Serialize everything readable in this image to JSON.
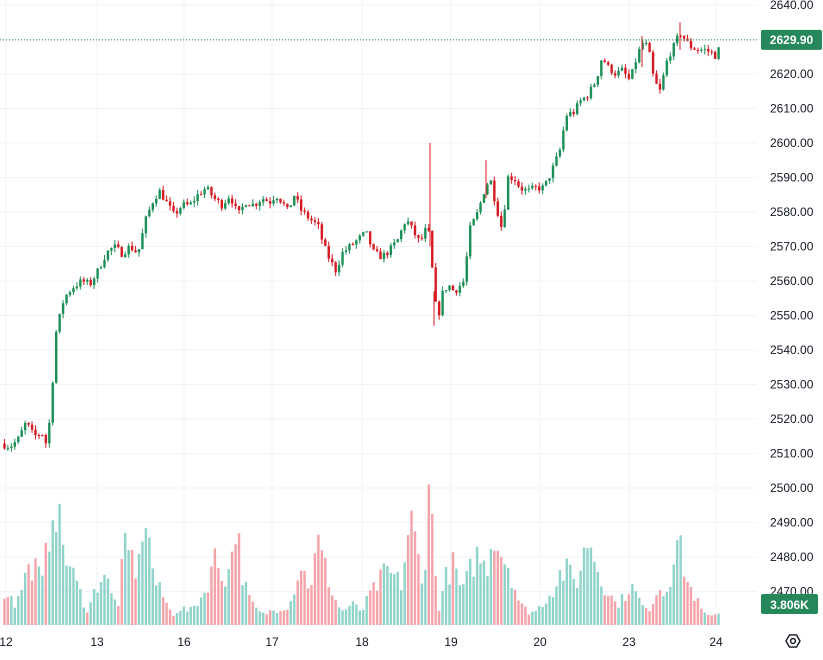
{
  "chart_data": {
    "type": "candlestick",
    "price_axis": {
      "ticks": [
        "2640.00",
        "2630.00",
        "2620.00",
        "2610.00",
        "2600.00",
        "2590.00",
        "2580.00",
        "2570.00",
        "2560.00",
        "2550.00",
        "2540.00",
        "2530.00",
        "2520.00",
        "2510.00",
        "2500.00",
        "2490.00",
        "2480.00",
        "2470.00"
      ],
      "tick_values": [
        2640,
        2630,
        2620,
        2610,
        2600,
        2590,
        2580,
        2570,
        2560,
        2550,
        2540,
        2530,
        2520,
        2510,
        2500,
        2490,
        2480,
        2470
      ]
    },
    "time_axis": {
      "labels": [
        "12",
        "13",
        "16",
        "17",
        "18",
        "19",
        "20",
        "23",
        "24"
      ]
    },
    "last_price": {
      "label": "2629.90",
      "value": 2629.9,
      "color": "#26875a"
    },
    "volume_badge": {
      "label": "3.806K",
      "color": "#26875a"
    },
    "colors": {
      "up": "#26a69a",
      "down": "#ef5350",
      "candle_up": "#1b8f55",
      "candle_down": "#d71921",
      "vol_up": "#8fd3ca",
      "vol_down": "#f5a3a8",
      "grid": "#f0f3fa",
      "text": "#131722",
      "last_line": "#26875a"
    },
    "settings_icon": "gear-icon",
    "keyframes": [
      [
        0,
        2513
      ],
      [
        10,
        2512
      ],
      [
        18,
        2514
      ],
      [
        26,
        2519
      ],
      [
        34,
        2515
      ],
      [
        42,
        2516
      ],
      [
        46,
        2513
      ],
      [
        50,
        2520
      ],
      [
        56,
        2545
      ],
      [
        64,
        2555
      ],
      [
        72,
        2558
      ],
      [
        82,
        2560
      ],
      [
        90,
        2559
      ],
      [
        98,
        2563
      ],
      [
        106,
        2568
      ],
      [
        114,
        2570
      ],
      [
        122,
        2568
      ],
      [
        130,
        2570
      ],
      [
        138,
        2568
      ],
      [
        146,
        2578
      ],
      [
        154,
        2584
      ],
      [
        160,
        2586
      ],
      [
        166,
        2583
      ],
      [
        174,
        2579
      ],
      [
        182,
        2582
      ],
      [
        190,
        2582
      ],
      [
        198,
        2585
      ],
      [
        206,
        2587
      ],
      [
        214,
        2584
      ],
      [
        222,
        2582
      ],
      [
        230,
        2585
      ],
      [
        238,
        2579
      ],
      [
        246,
        2583
      ],
      [
        254,
        2582
      ],
      [
        262,
        2584
      ],
      [
        270,
        2583
      ],
      [
        276,
        2585
      ],
      [
        282,
        2583
      ],
      [
        288,
        2580
      ],
      [
        294,
        2585
      ],
      [
        302,
        2580
      ],
      [
        310,
        2578
      ],
      [
        318,
        2576
      ],
      [
        324,
        2570
      ],
      [
        330,
        2566
      ],
      [
        336,
        2563
      ],
      [
        342,
        2568
      ],
      [
        350,
        2570
      ],
      [
        358,
        2572
      ],
      [
        366,
        2574
      ],
      [
        374,
        2568
      ],
      [
        382,
        2567
      ],
      [
        390,
        2569
      ],
      [
        398,
        2572
      ],
      [
        406,
        2578
      ],
      [
        414,
        2574
      ],
      [
        420,
        2571
      ],
      [
        426,
        2575
      ],
      [
        430,
        2573
      ],
      [
        434,
        2556
      ],
      [
        438,
        2549
      ],
      [
        442,
        2556
      ],
      [
        448,
        2559
      ],
      [
        454,
        2557
      ],
      [
        458,
        2558
      ],
      [
        464,
        2560
      ],
      [
        470,
        2575
      ],
      [
        478,
        2580
      ],
      [
        484,
        2586
      ],
      [
        490,
        2590
      ],
      [
        496,
        2582
      ],
      [
        502,
        2575
      ],
      [
        508,
        2590
      ],
      [
        514,
        2590
      ],
      [
        520,
        2587
      ],
      [
        528,
        2586
      ],
      [
        536,
        2587
      ],
      [
        544,
        2587
      ],
      [
        552,
        2592
      ],
      [
        560,
        2598
      ],
      [
        566,
        2608
      ],
      [
        574,
        2609
      ],
      [
        580,
        2612
      ],
      [
        588,
        2614
      ],
      [
        596,
        2618
      ],
      [
        602,
        2625
      ],
      [
        608,
        2622
      ],
      [
        616,
        2620
      ],
      [
        622,
        2621
      ],
      [
        630,
        2618
      ],
      [
        636,
        2624
      ],
      [
        642,
        2629
      ],
      [
        648,
        2628
      ],
      [
        654,
        2618
      ],
      [
        660,
        2615
      ],
      [
        668,
        2625
      ],
      [
        674,
        2628
      ],
      [
        680,
        2632
      ],
      [
        690,
        2628
      ],
      [
        698,
        2627
      ],
      [
        706,
        2627
      ],
      [
        712,
        2626
      ],
      [
        717,
        2625
      ],
      [
        721,
        2629.9
      ]
    ],
    "volume_keyframes": [
      [
        0,
        4
      ],
      [
        10,
        11
      ],
      [
        16,
        5
      ],
      [
        24,
        14
      ],
      [
        34,
        18
      ],
      [
        42,
        12
      ],
      [
        48,
        24
      ],
      [
        54,
        40
      ],
      [
        60,
        28
      ],
      [
        66,
        20
      ],
      [
        74,
        14
      ],
      [
        82,
        8
      ],
      [
        88,
        4
      ],
      [
        96,
        11
      ],
      [
        104,
        16
      ],
      [
        112,
        8
      ],
      [
        118,
        6
      ],
      [
        124,
        22
      ],
      [
        132,
        20
      ],
      [
        138,
        14
      ],
      [
        144,
        35
      ],
      [
        150,
        22
      ],
      [
        156,
        12
      ],
      [
        164,
        8
      ],
      [
        172,
        3
      ],
      [
        180,
        5
      ],
      [
        190,
        4
      ],
      [
        198,
        7
      ],
      [
        206,
        10
      ],
      [
        214,
        20
      ],
      [
        222,
        15
      ],
      [
        228,
        14
      ],
      [
        236,
        30
      ],
      [
        244,
        12
      ],
      [
        252,
        6
      ],
      [
        262,
        3
      ],
      [
        270,
        4
      ],
      [
        280,
        5
      ],
      [
        290,
        6
      ],
      [
        300,
        18
      ],
      [
        310,
        11
      ],
      [
        318,
        24
      ],
      [
        326,
        16
      ],
      [
        334,
        8
      ],
      [
        342,
        4
      ],
      [
        352,
        6
      ],
      [
        362,
        4
      ],
      [
        370,
        9
      ],
      [
        378,
        12
      ],
      [
        386,
        16
      ],
      [
        394,
        14
      ],
      [
        402,
        12
      ],
      [
        410,
        32
      ],
      [
        418,
        20
      ],
      [
        424,
        7
      ],
      [
        428,
        50
      ],
      [
        432,
        30
      ],
      [
        438,
        4
      ],
      [
        446,
        14
      ],
      [
        454,
        18
      ],
      [
        462,
        9
      ],
      [
        470,
        16
      ],
      [
        478,
        21
      ],
      [
        486,
        16
      ],
      [
        494,
        28
      ],
      [
        500,
        22
      ],
      [
        508,
        18
      ],
      [
        514,
        12
      ],
      [
        520,
        6
      ],
      [
        528,
        4
      ],
      [
        536,
        4
      ],
      [
        544,
        7
      ],
      [
        552,
        10
      ],
      [
        560,
        15
      ],
      [
        568,
        16
      ],
      [
        576,
        12
      ],
      [
        582,
        18
      ],
      [
        588,
        26
      ],
      [
        594,
        21
      ],
      [
        600,
        14
      ],
      [
        608,
        10
      ],
      [
        616,
        6
      ],
      [
        624,
        8
      ],
      [
        630,
        12
      ],
      [
        638,
        8
      ],
      [
        646,
        4
      ],
      [
        652,
        6
      ],
      [
        658,
        12
      ],
      [
        664,
        9
      ],
      [
        670,
        14
      ],
      [
        676,
        26
      ],
      [
        682,
        20
      ],
      [
        688,
        12
      ],
      [
        694,
        9
      ],
      [
        702,
        4
      ],
      [
        710,
        2
      ],
      [
        716,
        4
      ],
      [
        722,
        3
      ]
    ]
  }
}
